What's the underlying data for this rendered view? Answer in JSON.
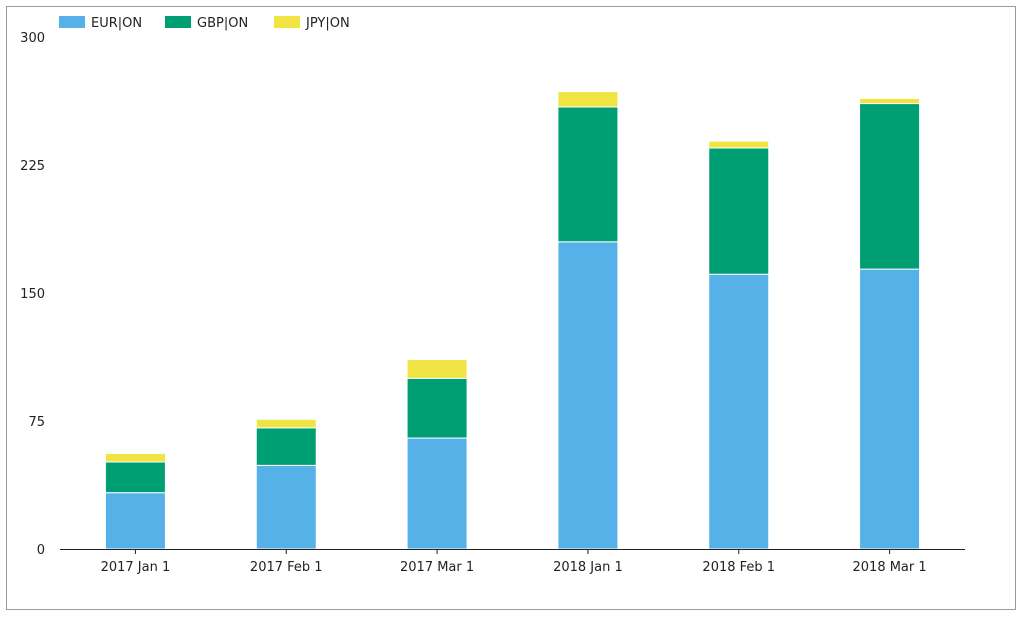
{
  "chart_data": {
    "type": "bar",
    "stacked": true,
    "categories": [
      "2017 Jan 1",
      "2017 Feb 1",
      "2017 Mar 1",
      "2018 Jan 1",
      "2018 Feb 1",
      "2018 Mar 1"
    ],
    "series": [
      {
        "name": "EUR|ON",
        "color": "#56b1e8",
        "values": [
          33,
          49,
          65,
          180,
          161,
          164
        ]
      },
      {
        "name": "GBP|ON",
        "color": "#009e73",
        "values": [
          18,
          22,
          35,
          79,
          74,
          97
        ]
      },
      {
        "name": "JPY|ON",
        "color": "#f0e442",
        "values": [
          5,
          5,
          11,
          9,
          4,
          3
        ]
      }
    ],
    "yticks": [
      0,
      75,
      150,
      225,
      300
    ],
    "ylim": [
      0,
      300
    ],
    "grid": false,
    "legend_position": "top-left"
  }
}
